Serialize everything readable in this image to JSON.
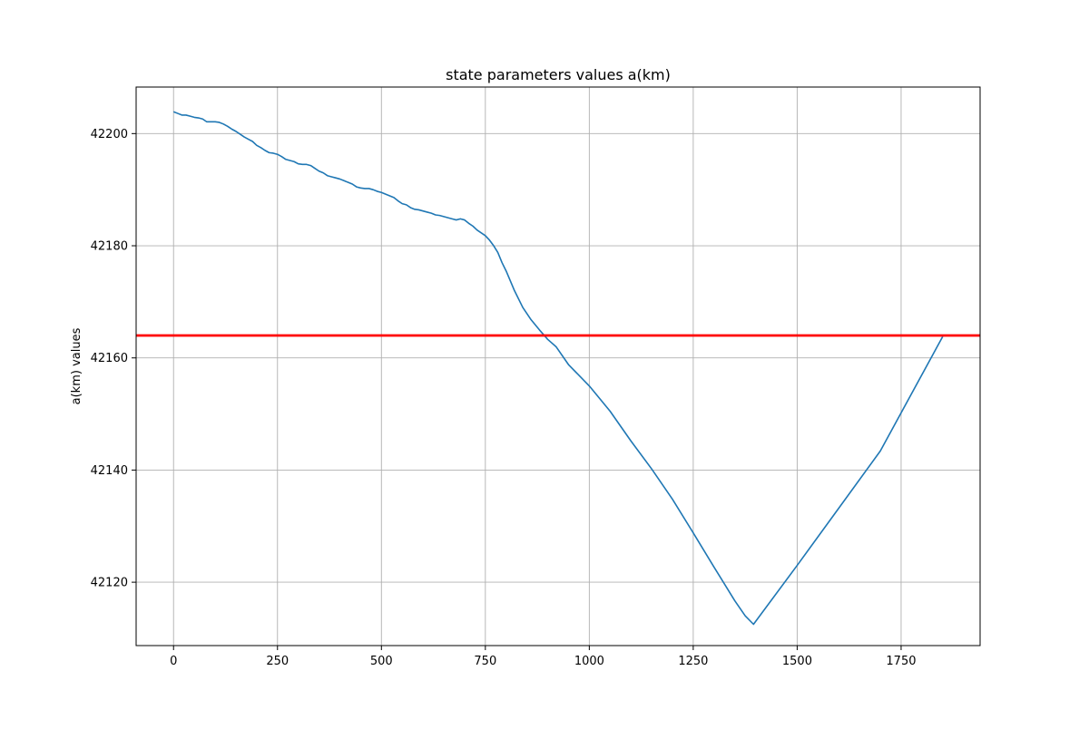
{
  "chart_data": {
    "type": "line",
    "title": "state parameters values a(km)",
    "xlabel": "",
    "ylabel": "a(km) values",
    "xlim": [
      -90,
      1940
    ],
    "ylim": [
      42108.7,
      42208.3
    ],
    "xticks": [
      0,
      250,
      500,
      750,
      1000,
      1250,
      1500,
      1750
    ],
    "yticks": [
      42120,
      42140,
      42160,
      42180,
      42200
    ],
    "grid": true,
    "series": [
      {
        "color": "#1f77b4",
        "x": [
          0,
          10,
          20,
          30,
          40,
          50,
          60,
          70,
          80,
          90,
          100,
          110,
          120,
          130,
          140,
          150,
          160,
          170,
          180,
          190,
          200,
          210,
          220,
          230,
          240,
          250,
          260,
          270,
          280,
          290,
          300,
          310,
          320,
          330,
          340,
          350,
          360,
          370,
          380,
          390,
          400,
          410,
          420,
          430,
          440,
          450,
          460,
          470,
          480,
          490,
          500,
          510,
          520,
          530,
          540,
          550,
          560,
          570,
          580,
          590,
          600,
          610,
          620,
          630,
          640,
          650,
          660,
          670,
          680,
          690,
          700,
          710,
          720,
          730,
          740,
          750,
          760,
          770,
          780,
          790,
          800,
          820,
          840,
          860,
          880,
          900,
          920,
          950,
          1000,
          1050,
          1100,
          1150,
          1200,
          1250,
          1300,
          1350,
          1375,
          1395,
          1500,
          1600,
          1700,
          1850
        ],
        "values": [
          42203.9,
          42203.6,
          42203.3,
          42203.3,
          42203.1,
          42202.9,
          42202.8,
          42202.6,
          42202.1,
          42202.1,
          42202.1,
          42202.0,
          42201.7,
          42201.3,
          42200.8,
          42200.4,
          42199.9,
          42199.4,
          42199.0,
          42198.6,
          42197.9,
          42197.5,
          42197.0,
          42196.6,
          42196.5,
          42196.3,
          42195.9,
          42195.4,
          42195.2,
          42195.0,
          42194.6,
          42194.5,
          42194.5,
          42194.3,
          42193.8,
          42193.3,
          42193.0,
          42192.5,
          42192.3,
          42192.1,
          42191.9,
          42191.6,
          42191.3,
          42191.0,
          42190.5,
          42190.3,
          42190.2,
          42190.2,
          42190.0,
          42189.7,
          42189.5,
          42189.2,
          42188.9,
          42188.6,
          42188.0,
          42187.5,
          42187.3,
          42186.8,
          42186.5,
          42186.4,
          42186.2,
          42186.0,
          42185.8,
          42185.5,
          42185.4,
          42185.2,
          42185.0,
          42184.8,
          42184.6,
          42184.8,
          42184.6,
          42184.0,
          42183.5,
          42182.8,
          42182.3,
          42181.8,
          42181.0,
          42180.0,
          42178.8,
          42177.0,
          42175.5,
          42172.0,
          42169.0,
          42166.8,
          42165.0,
          42163.3,
          42162.0,
          42158.8,
          42155.0,
          42150.5,
          42145.2,
          42140.2,
          42134.8,
          42128.8,
          42122.7,
          42116.7,
          42114.0,
          42112.5,
          42123.0,
          42133.2,
          42143.4,
          42163.8
        ]
      }
    ],
    "reference_line": {
      "y": 42164.0,
      "color": "#ff0000"
    },
    "colors": {
      "line": "#1f77b4",
      "reference": "#ff0000",
      "grid": "#b0b0b0",
      "axes": "#000000"
    }
  }
}
